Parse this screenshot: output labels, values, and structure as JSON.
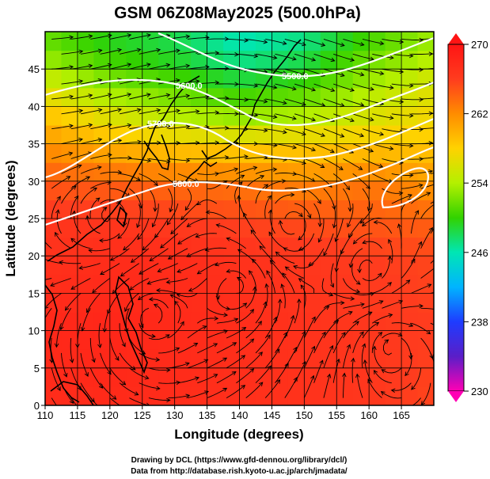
{
  "chart_data": {
    "type": "heatmap",
    "title": "GSM 06Z08May2025 (500.0hPa)",
    "xlabel": "Longitude (degrees)",
    "ylabel": "Latitude  (degrees)",
    "xlim": [
      110,
      170
    ],
    "ylim": [
      0,
      50
    ],
    "xticks": [
      110,
      115,
      120,
      125,
      130,
      135,
      140,
      145,
      150,
      155,
      160,
      165
    ],
    "yticks": [
      0,
      5,
      10,
      15,
      20,
      25,
      30,
      35,
      40,
      45
    ],
    "field": "temperature (K)",
    "colorbar": {
      "min": 230,
      "max": 270,
      "ticks": [
        230,
        238,
        246,
        254,
        262,
        270
      ],
      "colors": [
        "#ff00b4",
        "#5a1ec8",
        "#1e3cff",
        "#00b4ff",
        "#00e6b4",
        "#32d200",
        "#b4f000",
        "#ffd200",
        "#ff8c00",
        "#ff3c1e",
        "#ff1414"
      ]
    },
    "isotherm_grid": {
      "lons": [
        110,
        120,
        130,
        140,
        150,
        160,
        170
      ],
      "lats": [
        0,
        10,
        20,
        25,
        30,
        35,
        40,
        45,
        50
      ],
      "values_K": [
        [
          267.5,
          267.8,
          267.5,
          267.2,
          267.0,
          266.5,
          265.5
        ],
        [
          268.0,
          268.2,
          267.8,
          267.5,
          267.0,
          266.5,
          266.0
        ],
        [
          267.0,
          267.5,
          267.5,
          267.0,
          266.5,
          266.0,
          265.5
        ],
        [
          266.5,
          266.5,
          266.0,
          265.5,
          265.0,
          264.5,
          264.0
        ],
        [
          264.5,
          264.0,
          263.5,
          263.0,
          262.0,
          263.0,
          261.0
        ],
        [
          261.5,
          259.5,
          258.0,
          257.5,
          258.0,
          258.5,
          258.5
        ],
        [
          258.0,
          255.0,
          253.0,
          251.5,
          252.5,
          255.0,
          257.0
        ],
        [
          254.0,
          251.0,
          249.5,
          247.5,
          249.0,
          252.5,
          255.0
        ],
        [
          251.0,
          249.0,
          248.0,
          245.5,
          246.5,
          250.0,
          253.0
        ]
      ]
    },
    "contour_labels": [
      "5500.0",
      "5600.0",
      "5700.0",
      "5800.0"
    ],
    "streamlines": "wind vectors at 500 hPa"
  },
  "footer": {
    "line1": "Drawing by DCL (https://www.gfd-dennou.org/library/dcl/)",
    "line2": "Data from http://database.rish.kyoto-u.ac.jp/arch/jmadata/"
  }
}
